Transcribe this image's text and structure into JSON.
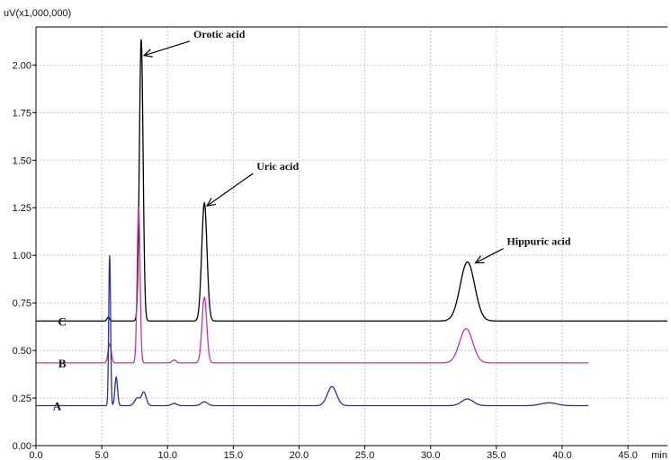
{
  "chart_data": {
    "type": "line",
    "title": "",
    "xlabel": "min",
    "ylabel": "uV(x1,000,000)",
    "xlim": [
      0,
      48
    ],
    "ylim": [
      0,
      2.2
    ],
    "x_ticks": [
      "0.0",
      "5.0",
      "10.0",
      "15.0",
      "20.0",
      "25.0",
      "30.0",
      "35.0",
      "40.0",
      "45.0"
    ],
    "y_ticks": [
      "0.00",
      "0.25",
      "0.50",
      "0.75",
      "1.00",
      "1.25",
      "1.50",
      "1.75",
      "2.00"
    ],
    "grid": true,
    "series": [
      {
        "name": "C",
        "color": "#000000",
        "baseline": 0.655,
        "x_end": 48,
        "peaks": [
          {
            "x": 5.5,
            "height": 0.02,
            "width": 0.1
          },
          {
            "x": 8.0,
            "height": 1.48,
            "width": 0.14
          },
          {
            "x": 12.8,
            "height": 0.62,
            "width": 0.2
          },
          {
            "x": 32.8,
            "height": 0.31,
            "width": 0.55
          }
        ]
      },
      {
        "name": "B",
        "color": "#cc3399",
        "baseline": 0.435,
        "x_end": 42,
        "peaks": [
          {
            "x": 5.6,
            "height": 0.1,
            "width": 0.12
          },
          {
            "x": 7.8,
            "height": 0.82,
            "width": 0.11
          },
          {
            "x": 10.5,
            "height": 0.015,
            "width": 0.15
          },
          {
            "x": 12.8,
            "height": 0.345,
            "width": 0.18
          },
          {
            "x": 32.7,
            "height": 0.18,
            "width": 0.5
          }
        ]
      },
      {
        "name": "A",
        "color": "#2b2f9e",
        "baseline": 0.21,
        "x_end": 42,
        "peaks": [
          {
            "x": 5.6,
            "height": 0.79,
            "width": 0.07
          },
          {
            "x": 6.1,
            "height": 0.15,
            "width": 0.1
          },
          {
            "x": 7.7,
            "height": 0.04,
            "width": 0.2
          },
          {
            "x": 8.2,
            "height": 0.07,
            "width": 0.18
          },
          {
            "x": 10.5,
            "height": 0.012,
            "width": 0.2
          },
          {
            "x": 12.8,
            "height": 0.02,
            "width": 0.25
          },
          {
            "x": 22.5,
            "height": 0.1,
            "width": 0.35
          },
          {
            "x": 32.8,
            "height": 0.035,
            "width": 0.45
          },
          {
            "x": 39.0,
            "height": 0.015,
            "width": 0.6
          }
        ]
      }
    ],
    "annotations": [
      {
        "text": "Orotic acid",
        "x": 8.0,
        "y": 2.05
      },
      {
        "text": "Uric acid",
        "x": 12.8,
        "y": 1.26
      },
      {
        "text": "Hippuric acid",
        "x": 33.2,
        "y": 0.96
      }
    ]
  }
}
